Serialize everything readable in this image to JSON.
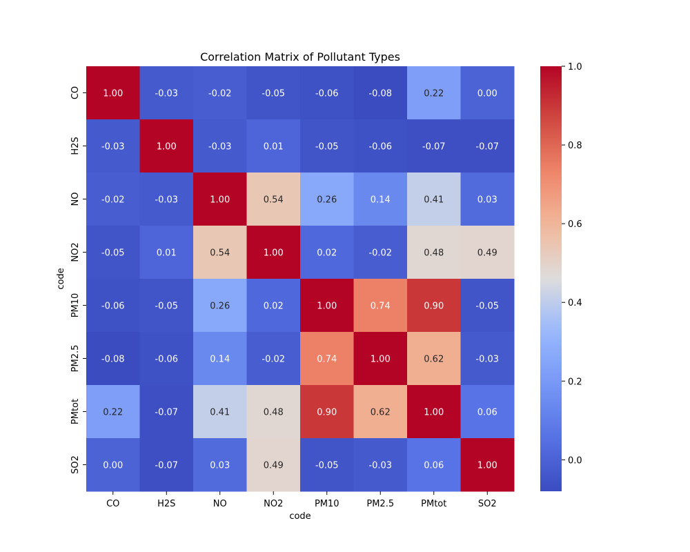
{
  "chart_data": {
    "type": "heatmap",
    "title": "Correlation Matrix of Pollutant Types",
    "xlabel": "code",
    "ylabel": "code",
    "x_categories": [
      "CO",
      "H2S",
      "NO",
      "NO2",
      "PM10",
      "PM2.5",
      "PMtot",
      "SO2"
    ],
    "y_categories": [
      "CO",
      "H2S",
      "NO",
      "NO2",
      "PM10",
      "PM2.5",
      "PMtot",
      "SO2"
    ],
    "values": [
      [
        1.0,
        -0.03,
        -0.02,
        -0.05,
        -0.06,
        -0.08,
        0.22,
        0.0
      ],
      [
        -0.03,
        1.0,
        -0.03,
        0.01,
        -0.05,
        -0.06,
        -0.07,
        -0.07
      ],
      [
        -0.02,
        -0.03,
        1.0,
        0.54,
        0.26,
        0.14,
        0.41,
        0.03
      ],
      [
        -0.05,
        0.01,
        0.54,
        1.0,
        0.02,
        -0.02,
        0.48,
        0.49
      ],
      [
        -0.06,
        -0.05,
        0.26,
        0.02,
        1.0,
        0.74,
        0.9,
        -0.05
      ],
      [
        -0.08,
        -0.06,
        0.14,
        -0.02,
        0.74,
        1.0,
        0.62,
        -0.03
      ],
      [
        0.22,
        -0.07,
        0.41,
        0.48,
        0.9,
        0.62,
        1.0,
        0.06
      ],
      [
        0.0,
        -0.07,
        0.03,
        0.49,
        -0.05,
        -0.03,
        0.06,
        1.0
      ]
    ],
    "annotation_format": "2 decimals",
    "colormap": "coolwarm",
    "colorbar": {
      "range": [
        -0.08,
        1.0
      ],
      "ticks": [
        0.0,
        0.2,
        0.4,
        0.6,
        0.8,
        1.0
      ],
      "tick_labels": [
        "0.0",
        "0.2",
        "0.4",
        "0.6",
        "0.8",
        "1.0"
      ]
    },
    "grid": false
  }
}
